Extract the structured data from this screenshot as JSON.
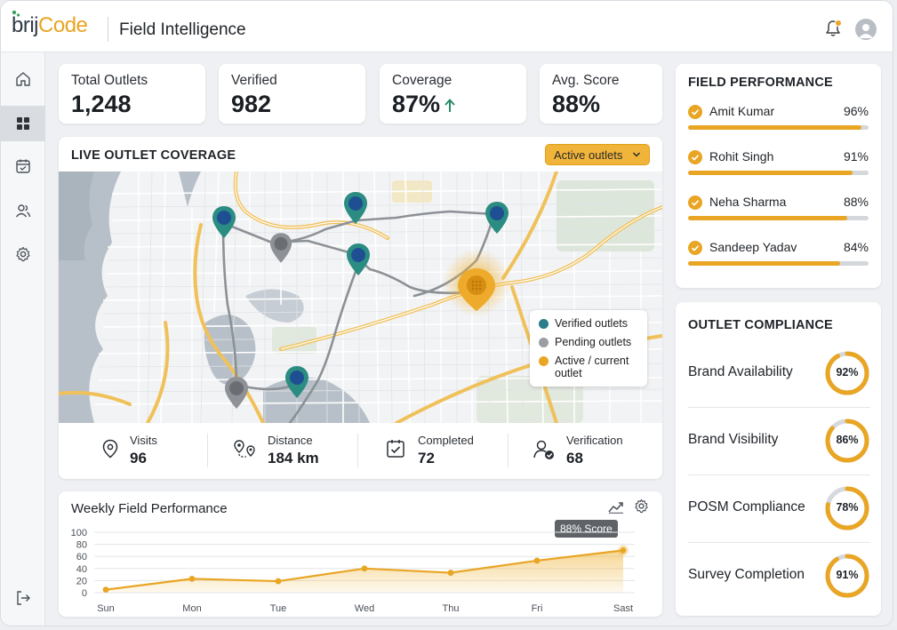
{
  "brand": {
    "part1": "brij",
    "part2": "Code",
    "accent": "#e9a524"
  },
  "header": {
    "title": "Field Intelligence"
  },
  "sidebar": {
    "items": [
      "home-icon",
      "dashboard-icon",
      "calendar-icon",
      "users-icon",
      "settings-icon"
    ],
    "active": "dashboard-icon",
    "bottom": "logout-icon"
  },
  "stats": [
    {
      "label": "Total Outlets",
      "value": "1,248"
    },
    {
      "label": "Verified",
      "value": "982"
    },
    {
      "label": "Coverage",
      "value": "87%",
      "trend": "up"
    },
    {
      "label": "Avg. Score",
      "value": "88%"
    }
  ],
  "map_card": {
    "title": "LIVE OUTLET COVERAGE",
    "filter": "Active outlets",
    "legend": [
      {
        "label": "Verified outlets",
        "color": "#2b7d8c"
      },
      {
        "label": "Pending outlets",
        "color": "#9a9ea4"
      },
      {
        "label": "Active / current outlet",
        "color": "#e9a524"
      }
    ],
    "metrics": [
      {
        "label": "Visits",
        "value": "96",
        "icon": "location-pin-icon"
      },
      {
        "label": "Distance",
        "value": "184 km",
        "icon": "route-icon"
      },
      {
        "label": "Completed",
        "value": "72",
        "icon": "check-square-icon"
      },
      {
        "label": "Verification",
        "value": "68",
        "icon": "user-check-icon"
      }
    ]
  },
  "weekly_chart": {
    "title": "Weekly Field Performance",
    "tooltip": "88% Score",
    "chart_data": {
      "type": "area",
      "categories": [
        "Sun",
        "Mon",
        "Tue",
        "Wed",
        "Thu",
        "Fri",
        "Sast"
      ],
      "values": [
        5,
        23,
        19,
        40,
        33,
        53,
        70
      ],
      "ylim": [
        0,
        100
      ],
      "yticks": [
        0,
        20,
        40,
        60,
        80,
        100
      ],
      "grid": true,
      "color": "#e9a524"
    }
  },
  "field_performance": {
    "title": "FIELD PERFORMANCE",
    "people": [
      {
        "name": "Amit Kumar",
        "pct": "96%",
        "value": 96
      },
      {
        "name": "Rohit Singh",
        "pct": "91%",
        "value": 91
      },
      {
        "name": "Neha Sharma",
        "pct": "88%",
        "value": 88
      },
      {
        "name": "Sandeep Yadav",
        "pct": "84%",
        "value": 84
      }
    ]
  },
  "compliance": {
    "title": "OUTLET COMPLIANCE",
    "items": [
      {
        "label": "Brand Availability",
        "pct": "92%",
        "value": 92
      },
      {
        "label": "Brand Visibility",
        "pct": "86%",
        "value": 86
      },
      {
        "label": "POSM Compliance",
        "pct": "78%",
        "value": 78
      },
      {
        "label": "Survey Completion",
        "pct": "91%",
        "value": 91
      }
    ]
  }
}
